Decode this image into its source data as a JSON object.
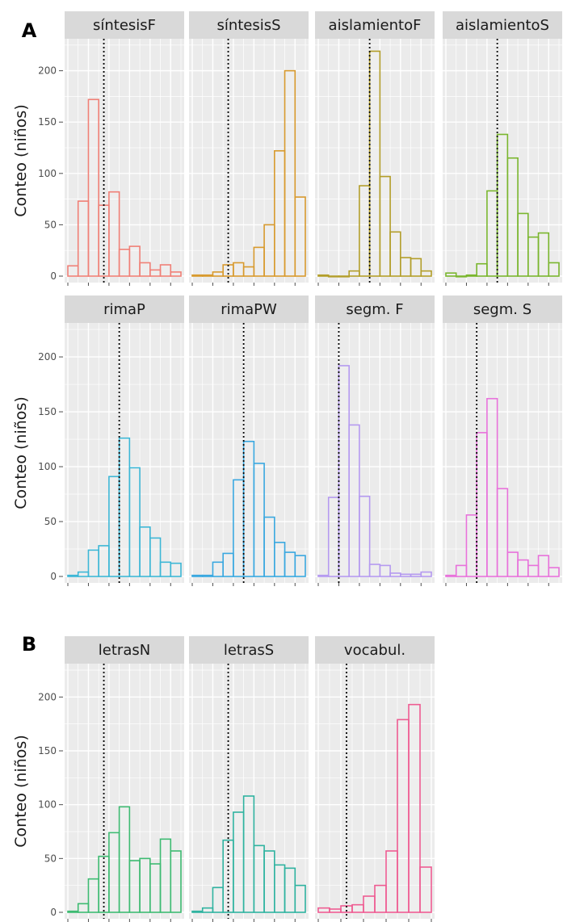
{
  "section_labels": [
    "A",
    "B"
  ],
  "chart_data": [
    {
      "type": "bar",
      "group": "A",
      "ylabel": "Conteo (niños)",
      "yticks": [
        0,
        50,
        100,
        150,
        200
      ],
      "ylim": [
        0,
        228
      ],
      "grid": true,
      "legend": "none",
      "reference_line": "dotted vertical",
      "panels": [
        {
          "title": "síntesisF",
          "color": "#F08077",
          "values": [
            10,
            73,
            172,
            69,
            82,
            26,
            29,
            13,
            6,
            11,
            4
          ],
          "ref_bin": 3.5
        },
        {
          "title": "síntesisS",
          "color": "#D89A2E",
          "values": [
            1,
            1,
            4,
            11,
            13,
            9,
            28,
            50,
            122,
            200,
            77
          ],
          "ref_bin": 3.5
        },
        {
          "title": "aislamientoF",
          "color": "#B39E2A",
          "values": [
            1,
            0,
            0,
            5,
            88,
            219,
            97,
            43,
            18,
            17,
            5
          ],
          "ref_bin": 5.0
        },
        {
          "title": "aislamientoS",
          "color": "#7AB62E",
          "values": [
            3,
            0,
            1,
            12,
            83,
            138,
            115,
            61,
            38,
            42,
            13
          ],
          "ref_bin": 5.0
        }
      ]
    },
    {
      "type": "bar",
      "group": "A",
      "ylabel": "Conteo (niños)",
      "yticks": [
        0,
        50,
        100,
        150,
        200
      ],
      "ylim": [
        0,
        228
      ],
      "grid": true,
      "legend": "none",
      "reference_line": "dotted vertical",
      "panels": [
        {
          "title": "rimaP",
          "color": "#3DB7D6",
          "values": [
            1,
            4,
            24,
            28,
            91,
            126,
            99,
            45,
            35,
            13,
            12
          ],
          "ref_bin": 5.0
        },
        {
          "title": "rimaPW",
          "color": "#3AA8E0",
          "values": [
            1,
            1,
            13,
            21,
            88,
            123,
            103,
            54,
            31,
            22,
            19
          ],
          "ref_bin": 5.0
        },
        {
          "title": "segm. F",
          "color": "#B59AF0",
          "values": [
            1,
            72,
            192,
            138,
            73,
            11,
            10,
            3,
            2,
            2,
            4
          ],
          "ref_bin": 2.0
        },
        {
          "title": "segm. S",
          "color": "#E872DB",
          "values": [
            1,
            10,
            56,
            131,
            162,
            80,
            22,
            15,
            10,
            19,
            8
          ],
          "ref_bin": 3.0
        }
      ]
    },
    {
      "type": "bar",
      "group": "B",
      "ylabel": "Conteo (niños)",
      "yticks": [
        0,
        50,
        100,
        150,
        200
      ],
      "ylim": [
        0,
        228
      ],
      "grid": true,
      "legend": "none",
      "reference_line": "dotted vertical",
      "panels": [
        {
          "title": "letrasN",
          "color": "#3EBB72",
          "values": [
            1,
            8,
            31,
            52,
            74,
            98,
            48,
            50,
            45,
            68,
            57
          ],
          "ref_bin": 3.5
        },
        {
          "title": "letrasS",
          "color": "#2FB3A0",
          "values": [
            1,
            4,
            23,
            67,
            93,
            108,
            62,
            57,
            44,
            41,
            25
          ],
          "ref_bin": 3.5
        },
        {
          "title": "vocabul.",
          "color": "#EE5C92",
          "values": [
            4,
            3,
            6,
            7,
            15,
            25,
            57,
            179,
            193,
            42
          ],
          "ref_bin": 2.5
        }
      ]
    }
  ]
}
